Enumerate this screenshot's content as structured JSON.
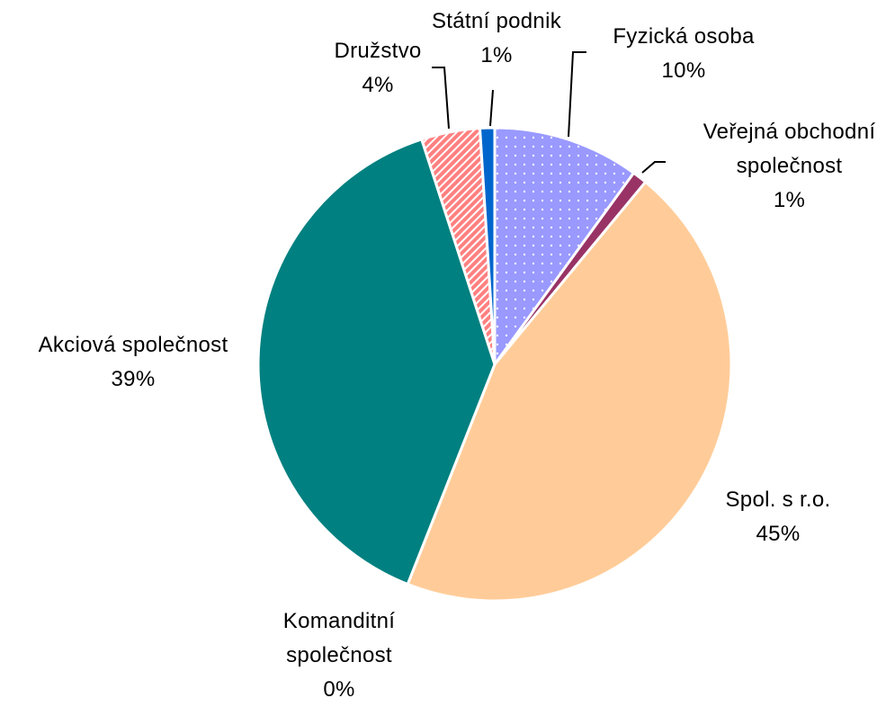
{
  "chart_data": {
    "type": "pie",
    "categories": [
      "Fyzická osoba",
      "Veřejná obchodní společnost",
      "Spol. s r.o.",
      "Komanditní společnost",
      "Akciová společnost",
      "Družstvo",
      "Státní podnik"
    ],
    "values": [
      10,
      1,
      45,
      0,
      39,
      4,
      1
    ],
    "value_labels": [
      "10%",
      "1%",
      "45%",
      "0%",
      "39%",
      "4%",
      "1%"
    ],
    "colors": [
      "#9999ff",
      "#993366",
      "#ffcc99",
      "#ccffcc",
      "#008080",
      "#ff8080",
      "#0066cc"
    ]
  }
}
